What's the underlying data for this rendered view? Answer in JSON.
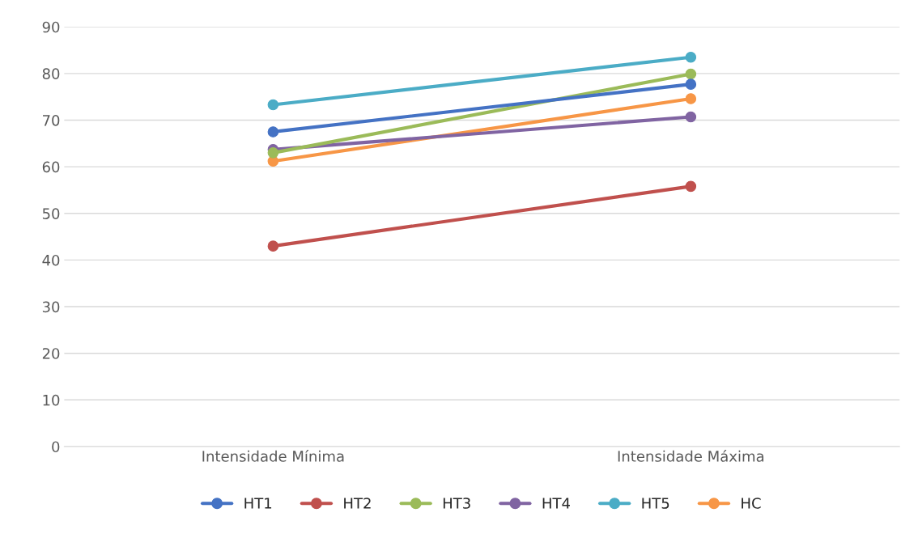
{
  "chart_data": {
    "type": "line",
    "categories": [
      "Intensidade Mínima",
      "Intensidade Máxima"
    ],
    "series": [
      {
        "name": "HT1",
        "color": "#4472c4",
        "values": [
          67.5,
          77.7
        ]
      },
      {
        "name": "HT2",
        "color": "#c0504d",
        "values": [
          43.0,
          55.8
        ]
      },
      {
        "name": "HT3",
        "color": "#9bbb59",
        "values": [
          63.0,
          79.9
        ]
      },
      {
        "name": "HT4",
        "color": "#8064a2",
        "values": [
          63.7,
          70.7
        ]
      },
      {
        "name": "HT5",
        "color": "#4bacc6",
        "values": [
          73.3,
          83.5
        ]
      },
      {
        "name": "HC",
        "color": "#f79646",
        "values": [
          61.2,
          74.6
        ]
      }
    ],
    "ylim": [
      0,
      90
    ],
    "yticks": [
      0,
      10,
      20,
      30,
      40,
      50,
      60,
      70,
      80,
      90
    ],
    "grid": "y",
    "legend": "bottom",
    "marker": "circle",
    "line_style": "solid"
  }
}
